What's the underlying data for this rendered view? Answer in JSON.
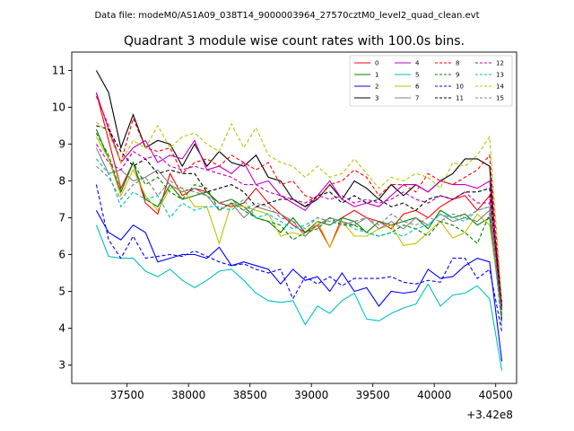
{
  "chart_data": {
    "type": "line",
    "suptitle": "Data file: modeM0/AS1A09_038T14_9000003964_27570cztM0_level2_quad_clean.evt",
    "title": "Quadrant 3 module wise count rates with 100.0s bins.",
    "xlabel": "",
    "ylabel": "",
    "x_offset_label": "+3.42e8",
    "xlim": [
      37050,
      40670
    ],
    "ylim": [
      2.5,
      11.5
    ],
    "x_ticks": [
      37500,
      38000,
      38500,
      39000,
      39500,
      40000,
      40500
    ],
    "x_tick_labels": [
      "37500",
      "38000",
      "38500",
      "39000",
      "39500",
      "40000",
      "40500"
    ],
    "y_ticks": [
      3,
      4,
      5,
      6,
      7,
      8,
      9,
      10,
      11
    ],
    "y_tick_labels": [
      "3",
      "4",
      "5",
      "6",
      "7",
      "8",
      "9",
      "10",
      "11"
    ],
    "legend_position": "upper-right",
    "x": [
      37250,
      37350,
      37450,
      37550,
      37650,
      37750,
      37850,
      37950,
      38050,
      38150,
      38250,
      38350,
      38450,
      38550,
      38650,
      38750,
      38850,
      38950,
      39050,
      39150,
      39250,
      39350,
      39450,
      39550,
      39650,
      39750,
      39850,
      39950,
      40050,
      40150,
      40250,
      40350,
      40450,
      40550
    ],
    "series": [
      {
        "name": "0",
        "color": "#ff0000",
        "dash": false,
        "values": [
          10.4,
          9.1,
          7.8,
          8.5,
          7.4,
          7.1,
          8.2,
          7.6,
          7.8,
          7.7,
          7.4,
          7.3,
          7.4,
          7.8,
          7.4,
          7.1,
          6.8,
          6.6,
          6.8,
          6.2,
          7.0,
          7.2,
          7.0,
          6.9,
          6.7,
          7.1,
          7.2,
          7.0,
          7.3,
          7.5,
          7.6,
          7.2,
          7.6,
          4.5
        ]
      },
      {
        "name": "1",
        "color": "#008000",
        "dash": false,
        "values": [
          9.4,
          8.6,
          7.7,
          8.5,
          7.5,
          7.3,
          7.9,
          7.5,
          7.6,
          7.7,
          7.4,
          7.5,
          7.3,
          7.0,
          6.9,
          6.6,
          7.0,
          6.6,
          6.9,
          6.8,
          7.0,
          6.9,
          6.6,
          6.9,
          6.8,
          6.9,
          7.0,
          6.7,
          7.2,
          7.0,
          7.1,
          6.8,
          7.0,
          4.5
        ]
      },
      {
        "name": "2",
        "color": "#0000ff",
        "dash": false,
        "values": [
          7.2,
          6.6,
          6.4,
          6.8,
          6.6,
          5.8,
          5.9,
          6.0,
          6.0,
          5.9,
          6.2,
          5.7,
          5.8,
          5.7,
          5.6,
          5.2,
          5.6,
          5.3,
          5.4,
          5.0,
          5.5,
          5.0,
          5.1,
          4.6,
          5.0,
          4.95,
          5.0,
          5.6,
          5.35,
          5.4,
          5.7,
          5.9,
          5.8,
          3.1
        ]
      },
      {
        "name": "3",
        "color": "#000000",
        "dash": false,
        "values": [
          11.0,
          10.4,
          8.9,
          9.8,
          8.9,
          9.1,
          9.0,
          8.4,
          9.0,
          8.4,
          8.8,
          8.5,
          8.4,
          8.7,
          8.1,
          8.0,
          7.5,
          7.3,
          7.5,
          7.9,
          7.5,
          8.0,
          7.8,
          7.5,
          7.9,
          7.6,
          7.9,
          7.7,
          8.0,
          8.2,
          8.6,
          8.6,
          8.4,
          4.2
        ]
      },
      {
        "name": "4",
        "color": "#c000c0",
        "dash": false,
        "values": [
          10.4,
          9.4,
          8.5,
          8.9,
          9.1,
          8.5,
          8.7,
          8.6,
          9.1,
          8.3,
          8.4,
          8.2,
          8.5,
          7.9,
          8.0,
          7.6,
          7.4,
          7.2,
          7.6,
          8.0,
          7.5,
          7.3,
          7.4,
          7.3,
          7.6,
          7.9,
          7.9,
          7.7,
          8.0,
          7.9,
          7.9,
          7.8,
          8.0,
          4.7
        ]
      },
      {
        "name": "5",
        "color": "#00c0c0",
        "dash": false,
        "values": [
          6.8,
          5.95,
          5.9,
          5.9,
          5.55,
          5.4,
          5.6,
          5.3,
          5.1,
          5.3,
          5.55,
          5.6,
          5.3,
          4.95,
          4.75,
          4.7,
          4.75,
          4.1,
          4.6,
          4.4,
          4.75,
          4.95,
          4.25,
          4.2,
          4.4,
          4.55,
          4.65,
          5.2,
          4.6,
          4.9,
          4.95,
          5.15,
          4.8,
          2.85
        ]
      },
      {
        "name": "6",
        "color": "#c0c000",
        "dash": false,
        "values": [
          9.2,
          8.6,
          7.6,
          8.3,
          7.6,
          7.2,
          7.8,
          7.8,
          7.3,
          7.3,
          6.3,
          7.4,
          7.3,
          7.2,
          7.1,
          6.5,
          6.6,
          6.5,
          6.9,
          6.2,
          6.9,
          6.5,
          6.5,
          6.7,
          6.8,
          6.25,
          6.3,
          6.6,
          6.9,
          6.45,
          6.6,
          7.1,
          6.8,
          4.4
        ]
      },
      {
        "name": "7",
        "color": "#808080",
        "dash": false,
        "values": [
          8.9,
          8.2,
          8.3,
          8.0,
          8.1,
          8.3,
          7.9,
          7.7,
          7.8,
          7.6,
          7.2,
          7.4,
          7.0,
          7.3,
          7.2,
          7.1,
          6.9,
          6.5,
          6.8,
          7.0,
          6.9,
          6.8,
          7.0,
          6.7,
          6.9,
          6.7,
          7.0,
          6.8,
          7.1,
          6.9,
          7.0,
          6.9,
          7.2,
          4.3
        ]
      },
      {
        "name": "8",
        "color": "#ff0000",
        "dash": true,
        "values": [
          10.3,
          9.5,
          8.5,
          9.7,
          8.9,
          8.8,
          8.9,
          8.2,
          8.5,
          8.6,
          8.4,
          8.7,
          8.5,
          8.3,
          8.5,
          7.9,
          8.0,
          7.6,
          7.5,
          7.9,
          8.0,
          8.3,
          8.1,
          7.6,
          7.9,
          7.9,
          7.7,
          8.2,
          8.0,
          7.9,
          8.1,
          8.3,
          8.7,
          4.6
        ]
      },
      {
        "name": "9",
        "color": "#008000",
        "dash": true,
        "values": [
          9.3,
          8.7,
          7.7,
          8.5,
          7.9,
          8.1,
          7.7,
          7.5,
          7.9,
          7.8,
          7.2,
          7.4,
          7.2,
          7.0,
          6.9,
          6.8,
          6.4,
          6.6,
          6.7,
          7.0,
          6.8,
          6.8,
          6.6,
          6.5,
          6.6,
          6.8,
          6.7,
          6.5,
          6.9,
          6.8,
          6.6,
          6.3,
          7.1,
          4.3
        ]
      },
      {
        "name": "10",
        "color": "#0000ff",
        "dash": true,
        "values": [
          7.9,
          6.4,
          5.9,
          6.5,
          5.9,
          5.95,
          6.0,
          5.95,
          6.1,
          5.95,
          5.8,
          5.7,
          5.75,
          5.6,
          5.5,
          5.6,
          4.8,
          5.4,
          5.2,
          5.4,
          5.15,
          5.35,
          5.35,
          5.35,
          5.4,
          5.25,
          5.2,
          5.3,
          5.25,
          5.9,
          5.9,
          5.35,
          5.6,
          3.9
        ]
      },
      {
        "name": "11",
        "color": "#000000",
        "dash": true,
        "values": [
          9.5,
          9.4,
          8.8,
          8.4,
          8.6,
          8.2,
          8.3,
          8.2,
          8.2,
          7.7,
          7.8,
          7.9,
          7.7,
          7.3,
          7.4,
          7.5,
          7.5,
          7.3,
          7.6,
          7.7,
          7.4,
          7.6,
          7.4,
          7.5,
          7.3,
          7.4,
          7.2,
          7.5,
          7.6,
          7.5,
          7.7,
          7.7,
          7.8,
          4.6
        ]
      },
      {
        "name": "12",
        "color": "#c000c0",
        "dash": true,
        "values": [
          9.0,
          8.5,
          8.3,
          8.8,
          8.6,
          8.7,
          8.4,
          8.3,
          8.4,
          8.3,
          8.2,
          8.1,
          7.9,
          7.9,
          7.7,
          7.6,
          7.5,
          7.4,
          7.6,
          7.5,
          7.6,
          7.4,
          7.5,
          7.4,
          7.5,
          7.7,
          7.5,
          7.4,
          7.6,
          7.5,
          7.7,
          7.4,
          7.4,
          4.5
        ]
      },
      {
        "name": "13",
        "color": "#00c0c0",
        "dash": true,
        "values": [
          8.6,
          8.2,
          7.3,
          7.7,
          7.5,
          7.6,
          7.0,
          7.4,
          7.2,
          7.3,
          7.3,
          7.2,
          7.5,
          7.0,
          7.1,
          6.9,
          6.7,
          6.8,
          7.0,
          6.9,
          6.9,
          6.7,
          6.6,
          6.5,
          6.6,
          6.5,
          6.7,
          6.8,
          7.1,
          7.0,
          6.9,
          7.2,
          7.3,
          4.1
        ]
      },
      {
        "name": "14",
        "color": "#c0c000",
        "dash": true,
        "values": [
          9.6,
          9.3,
          8.5,
          9.1,
          8.9,
          9.5,
          8.9,
          9.2,
          9.3,
          9.0,
          8.8,
          9.55,
          8.9,
          9.45,
          8.7,
          8.5,
          8.4,
          8.1,
          8.4,
          8.1,
          8.2,
          8.6,
          8.2,
          7.8,
          8.1,
          8.0,
          8.2,
          8.1,
          7.8,
          8.5,
          8.4,
          8.7,
          9.2,
          4.7
        ]
      },
      {
        "name": "15",
        "color": "#808080",
        "dash": true,
        "values": [
          8.4,
          8.1,
          7.5,
          7.9,
          8.1,
          7.6,
          8.0,
          7.8,
          7.7,
          7.6,
          7.4,
          7.5,
          7.2,
          7.4,
          7.3,
          7.0,
          6.9,
          6.7,
          7.0,
          6.9,
          6.8,
          6.9,
          7.0,
          6.8,
          7.1,
          6.9,
          6.8,
          7.0,
          6.9,
          7.1,
          7.0,
          7.2,
          7.3,
          4.0
        ]
      }
    ]
  }
}
